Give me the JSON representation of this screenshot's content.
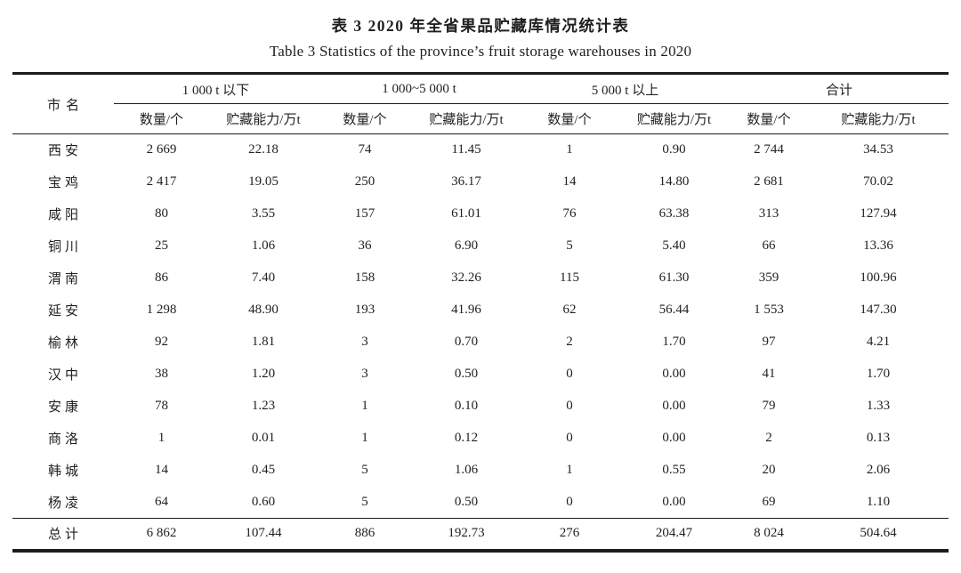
{
  "captions": {
    "cn": "表 3  2020 年全省果品贮藏库情况统计表",
    "en": "Table 3  Statistics of the province’s fruit storage warehouses in 2020"
  },
  "colors": {
    "rule": "#1c1c1c",
    "text": "#1f1f1f",
    "background": "#ffffff"
  },
  "table": {
    "corner_header": "市名",
    "groups": [
      {
        "label": "1 000 t 以下"
      },
      {
        "label": "1 000~5 000 t"
      },
      {
        "label": "5 000 t 以上"
      },
      {
        "label": "合计"
      }
    ],
    "sub_headers": [
      "数量/个",
      "贮藏能力/万t"
    ],
    "rows": [
      {
        "city": "西安",
        "values": [
          "2 669",
          "22.18",
          "74",
          "11.45",
          "1",
          "0.90",
          "2 744",
          "34.53"
        ]
      },
      {
        "city": "宝鸡",
        "values": [
          "2 417",
          "19.05",
          "250",
          "36.17",
          "14",
          "14.80",
          "2 681",
          "70.02"
        ]
      },
      {
        "city": "咸阳",
        "values": [
          "80",
          "3.55",
          "157",
          "61.01",
          "76",
          "63.38",
          "313",
          "127.94"
        ]
      },
      {
        "city": "铜川",
        "values": [
          "25",
          "1.06",
          "36",
          "6.90",
          "5",
          "5.40",
          "66",
          "13.36"
        ]
      },
      {
        "city": "渭南",
        "values": [
          "86",
          "7.40",
          "158",
          "32.26",
          "115",
          "61.30",
          "359",
          "100.96"
        ]
      },
      {
        "city": "延安",
        "values": [
          "1 298",
          "48.90",
          "193",
          "41.96",
          "62",
          "56.44",
          "1 553",
          "147.30"
        ]
      },
      {
        "city": "榆林",
        "values": [
          "92",
          "1.81",
          "3",
          "0.70",
          "2",
          "1.70",
          "97",
          "4.21"
        ]
      },
      {
        "city": "汉中",
        "values": [
          "38",
          "1.20",
          "3",
          "0.50",
          "0",
          "0.00",
          "41",
          "1.70"
        ]
      },
      {
        "city": "安康",
        "values": [
          "78",
          "1.23",
          "1",
          "0.10",
          "0",
          "0.00",
          "79",
          "1.33"
        ]
      },
      {
        "city": "商洛",
        "values": [
          "1",
          "0.01",
          "1",
          "0.12",
          "0",
          "0.00",
          "2",
          "0.13"
        ]
      },
      {
        "city": "韩城",
        "values": [
          "14",
          "0.45",
          "5",
          "1.06",
          "1",
          "0.55",
          "20",
          "2.06"
        ]
      },
      {
        "city": "杨凌",
        "values": [
          "64",
          "0.60",
          "5",
          "0.50",
          "0",
          "0.00",
          "69",
          "1.10"
        ]
      }
    ],
    "total_row": {
      "city": "总计",
      "values": [
        "6 862",
        "107.44",
        "886",
        "192.73",
        "276",
        "204.47",
        "8 024",
        "504.64"
      ]
    }
  }
}
